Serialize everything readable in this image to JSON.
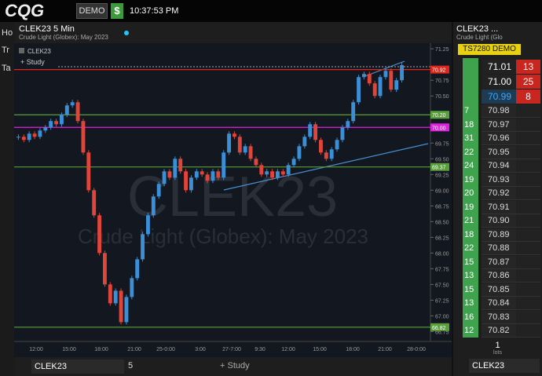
{
  "topbar": {
    "logo": "CQG",
    "mode": "DEMO",
    "dollar": "$",
    "clock": "10:37:53 PM"
  },
  "sidebar": [
    "Ho",
    "Tr",
    "Ta"
  ],
  "chart_tab": {
    "title": "CLEK23 5 Min",
    "subtitle": "Crude Light (Globex): May 2023"
  },
  "chart_data": {
    "type": "candlestick",
    "symbol": "CLEK23",
    "study": "+ Study",
    "watermark": "CLEK23",
    "watermark_sub": "Crude Light (Globex): May 2023",
    "closes": [
      69.85,
      69.8,
      69.9,
      69.85,
      69.95,
      70.0,
      70.1,
      70.05,
      70.2,
      70.35,
      70.4,
      70.1,
      69.6,
      69.0,
      68.6,
      68.0,
      67.5,
      67.2,
      67.4,
      66.9,
      67.3,
      67.6,
      67.9,
      68.3,
      68.6,
      68.9,
      69.1,
      69.3,
      69.2,
      69.5,
      69.3,
      69.0,
      69.2,
      69.3,
      69.25,
      69.15,
      69.3,
      69.2,
      69.6,
      69.9,
      69.85,
      69.6,
      69.7,
      69.5,
      69.4,
      69.25,
      69.3,
      69.2,
      69.3,
      69.25,
      69.4,
      69.5,
      69.7,
      69.85,
      70.05,
      69.8,
      69.6,
      69.5,
      69.65,
      69.8,
      70.0,
      70.1,
      70.4,
      70.8,
      70.85,
      70.7,
      70.5,
      70.8,
      70.9,
      70.6,
      70.75,
      70.99
    ],
    "up_color": "#3b8fd6",
    "down_color": "#e0453a",
    "ylim": [
      66.68,
      71.34
    ],
    "yticks": [
      71.25,
      70.75,
      {
        "value": 70.5,
        "label": "70.50"
      },
      69.75,
      {
        "value": 69.5,
        "label": "69.50"
      },
      69.25,
      {
        "value": 69,
        "label": "69.00"
      },
      68.75,
      {
        "value": 68.5,
        "label": "68.50"
      },
      68.25,
      {
        "value": 68,
        "label": "68.00"
      },
      67.75,
      {
        "value": 67.5,
        "label": "67.50"
      },
      67.25,
      {
        "value": 67,
        "label": "67.00"
      },
      66.75
    ],
    "levels": [
      {
        "value": 70.92,
        "color": "#e0261b"
      },
      {
        "value": 70.2,
        "label": "70.20",
        "color": "#5aa03a"
      },
      {
        "value": 70,
        "label": "70.00",
        "color": "#e020e0"
      },
      {
        "value": 69.37,
        "color": "#5aa03a"
      },
      {
        "value": 66.82,
        "color": "#5aa03a"
      }
    ],
    "x_labels": [
      "12:00",
      "15:00",
      "18:00",
      "21:00",
      "25-0:00",
      "3:00",
      "27-7:00",
      "9:30",
      "12:00",
      "15:00",
      "18:00",
      "21:00",
      "28-0:00"
    ]
  },
  "toolbar": {
    "symbol": "CLEK23",
    "interval": "5",
    "study": "+ Study"
  },
  "dom": {
    "title": "CLEK23 ...",
    "subtitle": "Crude Light (Glo",
    "account": "TS7280 DEMO",
    "asks": [
      {
        "price": "71.01",
        "size": "13"
      },
      {
        "price": "71.00",
        "size": "25"
      },
      {
        "price": "70.99",
        "size": "8"
      }
    ],
    "bids": [
      {
        "price": "70.98",
        "size": "7"
      },
      {
        "price": "70.97",
        "size": "18"
      },
      {
        "price": "70.96",
        "size": "31"
      },
      {
        "price": "70.95",
        "size": "22"
      },
      {
        "price": "70.94",
        "size": "24"
      },
      {
        "price": "70.93",
        "size": "19"
      },
      {
        "price": "70.92",
        "size": "20"
      },
      {
        "price": "70.91",
        "size": "19"
      },
      {
        "price": "70.90",
        "size": "21"
      },
      {
        "price": "70.89",
        "size": "18"
      },
      {
        "price": "70.88",
        "size": "22"
      },
      {
        "price": "70.87",
        "size": "15"
      },
      {
        "price": "70.86",
        "size": "13"
      },
      {
        "price": "70.85",
        "size": "15"
      },
      {
        "price": "70.84",
        "size": "13"
      },
      {
        "price": "70.83",
        "size": "16"
      },
      {
        "price": "70.82",
        "size": "12"
      }
    ],
    "qty": "1",
    "qty_unit": "lots",
    "symbol": "CLEK23"
  }
}
